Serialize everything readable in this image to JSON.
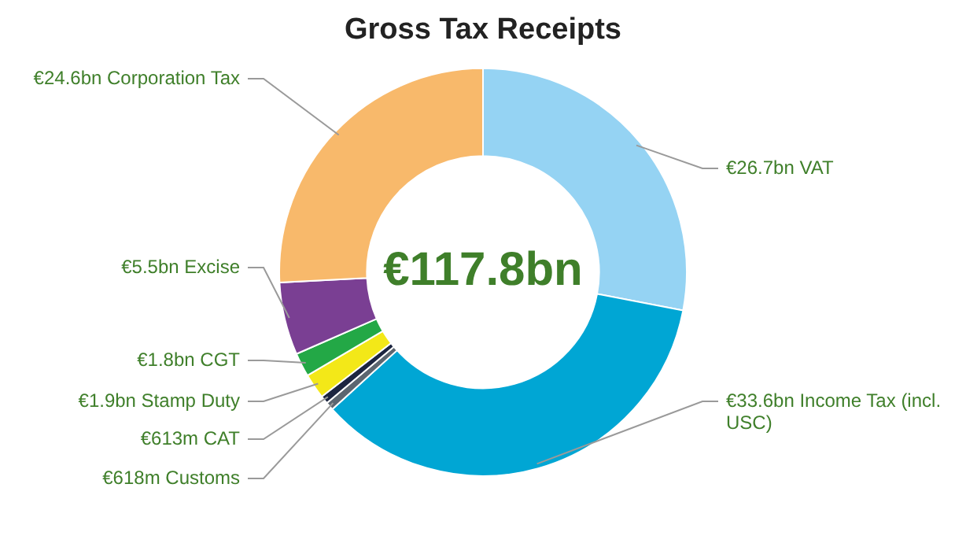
{
  "chart_data": {
    "type": "donut",
    "title": "Gross Tax Receipts",
    "categories": [
      "€26.7bn VAT",
      "€33.6bn Income Tax (incl. USC)",
      "€618m Customs",
      "€613m CAT",
      "€1.9bn Stamp Duty",
      "€1.8bn CGT",
      "€5.5bn Excise",
      "€24.6bn Corporation Tax"
    ],
    "values": [
      26.7,
      33.6,
      0.618,
      0.613,
      1.9,
      1.8,
      5.5,
      24.6
    ],
    "colors": [
      "#95d3f3",
      "#00a6d4",
      "#5c6670",
      "#1c2540",
      "#f3e818",
      "#23a846",
      "#7a3f93",
      "#f8b96b"
    ],
    "annotations": [
      "€117.8bn"
    ],
    "legend": false
  }
}
